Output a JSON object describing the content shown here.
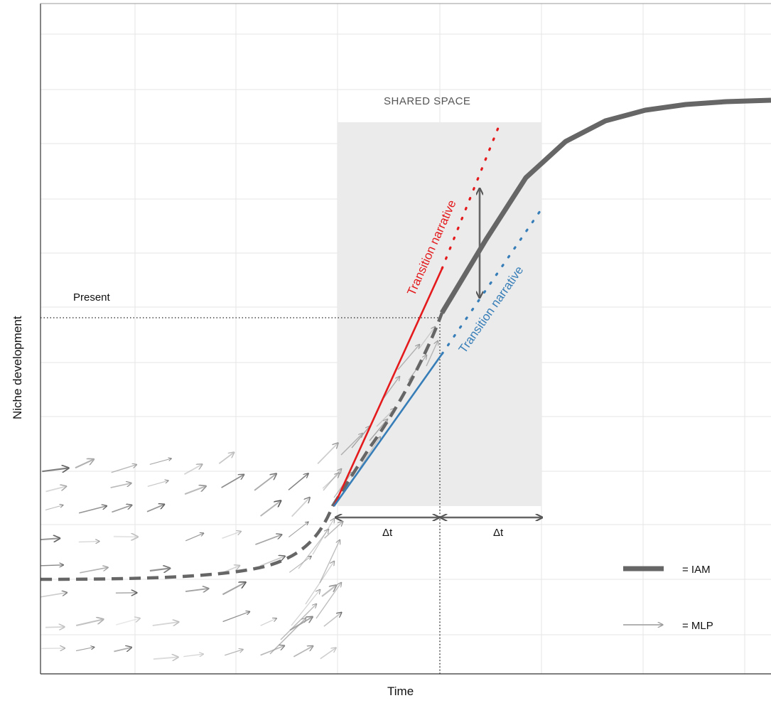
{
  "axes": {
    "xlabel": "Time",
    "ylabel": "Niche development"
  },
  "annotations": {
    "shared_space": "SHARED SPACE",
    "present": "Present",
    "delta_left": "Δt",
    "delta_right": "Δt",
    "red_narrative": "Transition narrative",
    "blue_narrative": "Transition narrative"
  },
  "legend": {
    "iam_label": "= IAM",
    "mlp_label": "= MLP"
  },
  "colors": {
    "iam": "#666666",
    "red": "#e41a1c",
    "blue": "#377eb8",
    "arrow_grey": "#999999",
    "shared_space_fill": "#ebebeb",
    "grid": "#e6e6e6"
  },
  "icons": {
    "iam_legend": "thick-line-icon",
    "mlp_legend": "arrow-icon"
  }
}
